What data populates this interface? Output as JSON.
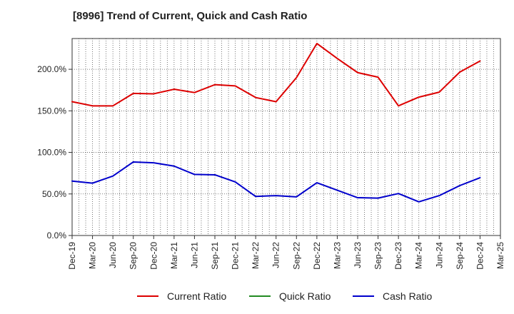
{
  "chart_data": {
    "type": "line",
    "title": "[8996]  Trend of Current, Quick and Cash Ratio",
    "xlabel": "",
    "ylabel": "",
    "ylim": [
      0,
      237
    ],
    "grid": true,
    "legend_position": "bottom",
    "categories": [
      "Dec-19",
      "Mar-20",
      "Jun-20",
      "Sep-20",
      "Dec-20",
      "Mar-21",
      "Jun-21",
      "Sep-21",
      "Dec-21",
      "Mar-22",
      "Jun-22",
      "Sep-22",
      "Dec-22",
      "Mar-23",
      "Jun-23",
      "Sep-23",
      "Dec-23",
      "Mar-24",
      "Jun-24",
      "Sep-24",
      "Dec-24",
      "Mar-25"
    ],
    "y_ticks": [
      0,
      50,
      100,
      150,
      200
    ],
    "y_tick_labels": [
      "0.0%",
      "50.0%",
      "100.0%",
      "150.0%",
      "200.0%"
    ],
    "series": [
      {
        "name": "Current Ratio",
        "color": "#dd0000",
        "values": [
          161,
          156,
          156,
          171,
          170.5,
          176,
          172,
          181.5,
          180,
          166,
          161,
          190,
          231,
          213,
          196,
          190.5,
          156,
          166.5,
          172.5,
          196.5,
          210,
          null
        ]
      },
      {
        "name": "Quick Ratio",
        "color": "#228b22",
        "values": [
          null,
          null,
          null,
          null,
          null,
          null,
          null,
          null,
          null,
          null,
          null,
          null,
          null,
          null,
          null,
          null,
          null,
          null,
          null,
          null,
          null,
          null
        ]
      },
      {
        "name": "Cash Ratio",
        "color": "#0000cc",
        "values": [
          65.5,
          63,
          71.5,
          88.5,
          87.5,
          83.5,
          73.5,
          73,
          64.5,
          47,
          48,
          46.5,
          63.5,
          54.5,
          45.5,
          45,
          50.5,
          40.5,
          48,
          60,
          69.5,
          null
        ]
      }
    ]
  }
}
